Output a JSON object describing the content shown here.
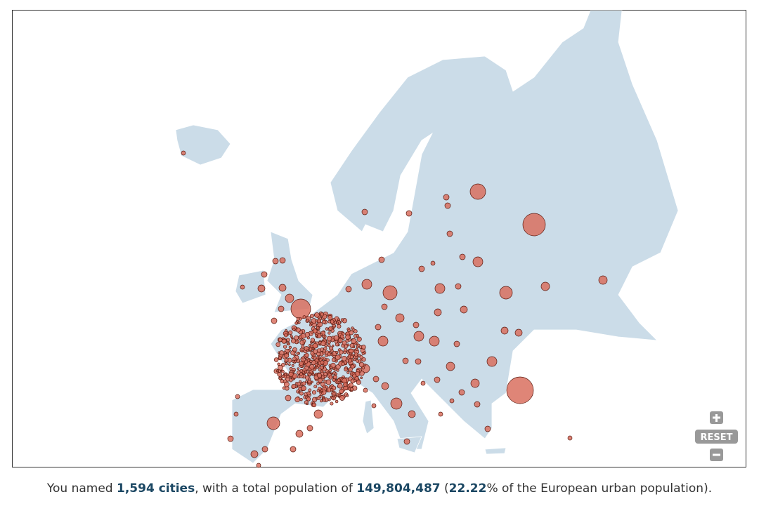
{
  "controls": {
    "reset": "RESET"
  },
  "summary": {
    "prefix": "You named ",
    "cities": "1,594 cities",
    "middle": ", with a total population of ",
    "population": "149,804,487",
    "open": " (",
    "share": "22.22",
    "suffix": "% of the European urban population)."
  }
}
